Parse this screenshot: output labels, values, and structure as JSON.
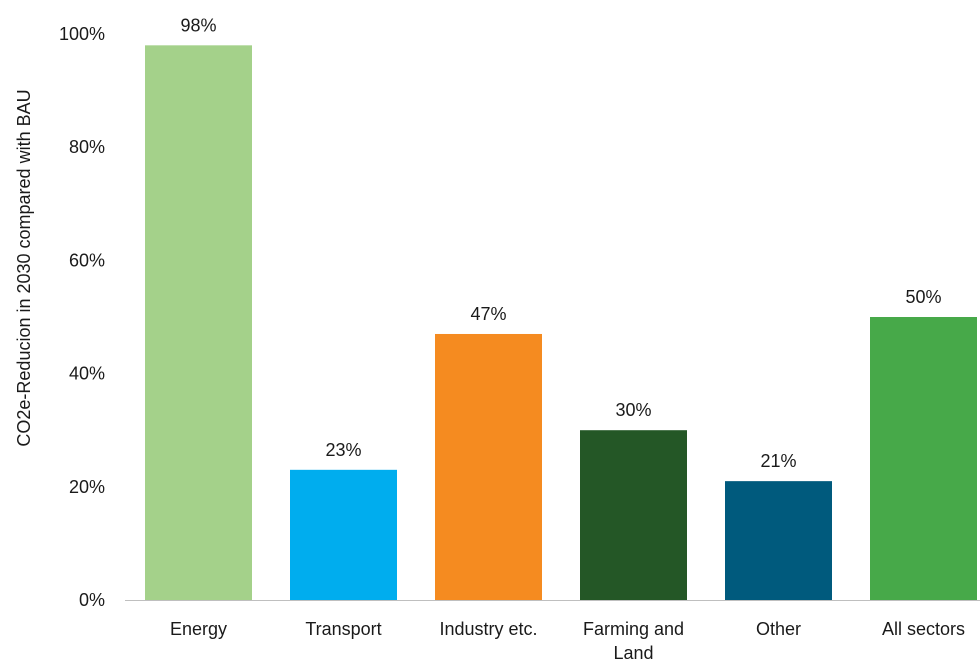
{
  "chart_data": {
    "type": "bar",
    "categories": [
      "Energy",
      "Transport",
      "Industry etc.",
      "Farming and Land",
      "Other",
      "All sectors"
    ],
    "category_lines": [
      [
        "Energy"
      ],
      [
        "Transport"
      ],
      [
        "Industry etc."
      ],
      [
        "Farming and",
        "Land"
      ],
      [
        "Other"
      ],
      [
        "All sectors"
      ]
    ],
    "values": [
      98,
      23,
      47,
      30,
      21,
      50
    ],
    "data_labels": [
      "98%",
      "23%",
      "47%",
      "30%",
      "21%",
      "50%"
    ],
    "colors": [
      "#a4d18a",
      "#00adee",
      "#f58b20",
      "#245726",
      "#005a7d",
      "#47a949"
    ],
    "title": "",
    "xlabel": "",
    "ylabel": "CO2e-Reducion in 2030 compared with BAU",
    "ylim": [
      0,
      100
    ],
    "yticks": [
      0,
      20,
      40,
      60,
      80,
      100
    ],
    "ytick_labels": [
      "0%",
      "20%",
      "40%",
      "60%",
      "80%",
      "100%"
    ],
    "grid": false,
    "legend": "none"
  }
}
